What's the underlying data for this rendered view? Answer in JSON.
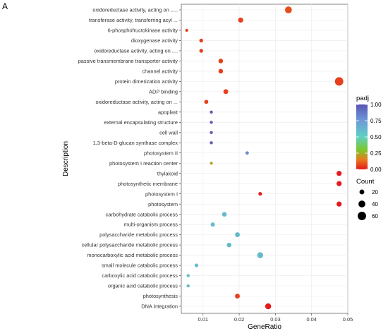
{
  "chart_data": {
    "type": "scatter",
    "panel_label": "A",
    "xlabel": "GeneRatio",
    "ylabel": "Description",
    "xlim": [
      0.004,
      0.05
    ],
    "x_ticks": [
      0.01,
      0.02,
      0.03,
      0.04,
      0.05
    ],
    "x_tick_labels": [
      "0.01",
      "0.02",
      "0.03",
      "0.04",
      "0.05"
    ],
    "grid": true,
    "terms": [
      {
        "label": "oxidoreductase activity, acting on .....",
        "gene_ratio": 0.0336,
        "count": 40,
        "padj": 0.08
      },
      {
        "label": "transferase activity, transferring acyl ...",
        "gene_ratio": 0.0204,
        "count": 22,
        "padj": 0.06
      },
      {
        "label": "6-phosphofructokinase activity",
        "gene_ratio": 0.0055,
        "count": 7,
        "padj": 0.06
      },
      {
        "label": "dioxygenase activity",
        "gene_ratio": 0.0095,
        "count": 12,
        "padj": 0.06
      },
      {
        "label": "oxidoreductase activity, acting on ....",
        "gene_ratio": 0.0095,
        "count": 12,
        "padj": 0.06
      },
      {
        "label": "passive transmembrane transporter activity",
        "gene_ratio": 0.0149,
        "count": 18,
        "padj": 0.06
      },
      {
        "label": "channel activity",
        "gene_ratio": 0.0149,
        "count": 18,
        "padj": 0.06
      },
      {
        "label": "protein dimerization activity",
        "gene_ratio": 0.0476,
        "count": 60,
        "padj": 0.06
      },
      {
        "label": "ADP binding",
        "gene_ratio": 0.0163,
        "count": 20,
        "padj": 0.06
      },
      {
        "label": "oxidoreductase activity, acting on ...",
        "gene_ratio": 0.0109,
        "count": 14,
        "padj": 0.06
      },
      {
        "label": "apoplast",
        "gene_ratio": 0.0123,
        "count": 8,
        "padj": 0.97
      },
      {
        "label": "external encapsulating structure",
        "gene_ratio": 0.0123,
        "count": 8,
        "padj": 0.97
      },
      {
        "label": "cell wall",
        "gene_ratio": 0.0123,
        "count": 8,
        "padj": 0.97
      },
      {
        "label": "1,3-beta-D-glucan synthase complex",
        "gene_ratio": 0.0123,
        "count": 8,
        "padj": 0.97
      },
      {
        "label": "photosystem II",
        "gene_ratio": 0.0222,
        "count": 10,
        "padj": 0.8
      },
      {
        "label": "photosystem I reaction center",
        "gene_ratio": 0.0123,
        "count": 7,
        "padj": 0.22
      },
      {
        "label": "thylakoid",
        "gene_ratio": 0.0476,
        "count": 22,
        "padj": 0.0
      },
      {
        "label": "photosynthetic membrane",
        "gene_ratio": 0.0476,
        "count": 22,
        "padj": 0.0
      },
      {
        "label": "photosystem I",
        "gene_ratio": 0.0258,
        "count": 11,
        "padj": 0.0
      },
      {
        "label": "photosystem",
        "gene_ratio": 0.0476,
        "count": 22,
        "padj": 0.0
      },
      {
        "label": "carbohydrate catabolic process",
        "gene_ratio": 0.0159,
        "count": 18,
        "padj": 0.6
      },
      {
        "label": "multi-organism process",
        "gene_ratio": 0.0127,
        "count": 15,
        "padj": 0.6
      },
      {
        "label": "polysaccharide metabolic process",
        "gene_ratio": 0.0195,
        "count": 20,
        "padj": 0.6
      },
      {
        "label": "cellular polysaccharide metabolic process",
        "gene_ratio": 0.0172,
        "count": 18,
        "padj": 0.6
      },
      {
        "label": "monocarboxylic acid metabolic process",
        "gene_ratio": 0.0258,
        "count": 30,
        "padj": 0.6
      },
      {
        "label": "small molecule catabolic process",
        "gene_ratio": 0.0082,
        "count": 11,
        "padj": 0.6
      },
      {
        "label": "carboxylic acid catabolic process",
        "gene_ratio": 0.0059,
        "count": 8,
        "padj": 0.6
      },
      {
        "label": "organic acid catabolic process",
        "gene_ratio": 0.0059,
        "count": 8,
        "padj": 0.6
      },
      {
        "label": "photosynthesis",
        "gene_ratio": 0.0195,
        "count": 20,
        "padj": 0.06
      },
      {
        "label": "DNA integration",
        "gene_ratio": 0.028,
        "count": 30,
        "padj": 0.0
      }
    ],
    "color_legend": {
      "title": "padj",
      "ticks": [
        1.0,
        0.75,
        0.5,
        0.25,
        0.0
      ],
      "tick_labels": [
        "1.00",
        "0.75",
        "0.50",
        "0.25",
        "0.00"
      ],
      "colors_low_to_high": [
        "#e41a1c",
        "#e87a1d",
        "#7cc72a",
        "#5fd0c3",
        "#5b55b5"
      ]
    },
    "size_legend": {
      "title": "Count",
      "values": [
        20,
        40,
        60
      ],
      "value_labels": [
        "20",
        "40",
        "60"
      ]
    }
  }
}
